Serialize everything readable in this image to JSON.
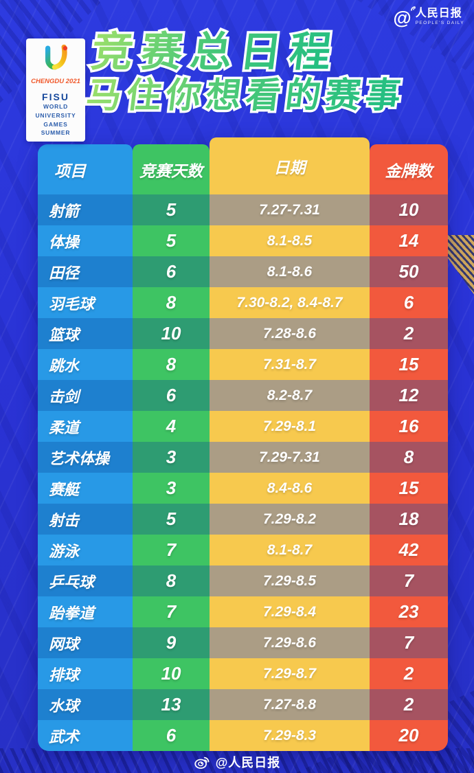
{
  "header": {
    "peoples_daily": {
      "name": "人民日报",
      "at": "@",
      "subtitle": "PEOPLE'S DAILY"
    },
    "logo_card": {
      "chengdu": "CHENGDU 2021",
      "fisu": "FISU",
      "lines": [
        "WORLD",
        "UNIVERSITY",
        "GAMES",
        "SUMMER"
      ]
    },
    "title_line1": "竞赛总日程",
    "title_line2": "马住你想看的赛事"
  },
  "footer": {
    "credit": "@人民日报"
  },
  "chart_data": {
    "type": "table",
    "title": "竞赛总日程",
    "subtitle": "马住你想看的赛事",
    "columns": [
      "项目",
      "竞赛天数",
      "日期",
      "金牌数"
    ],
    "rows": [
      [
        "射箭",
        "5",
        "7.27-7.31",
        "10"
      ],
      [
        "体操",
        "5",
        "8.1-8.5",
        "14"
      ],
      [
        "田径",
        "6",
        "8.1-8.6",
        "50"
      ],
      [
        "羽毛球",
        "8",
        "7.30-8.2, 8.4-8.7",
        "6"
      ],
      [
        "篮球",
        "10",
        "7.28-8.6",
        "2"
      ],
      [
        "跳水",
        "8",
        "7.31-8.7",
        "15"
      ],
      [
        "击剑",
        "6",
        "8.2-8.7",
        "12"
      ],
      [
        "柔道",
        "4",
        "7.29-8.1",
        "16"
      ],
      [
        "艺术体操",
        "3",
        "7.29-7.31",
        "8"
      ],
      [
        "赛艇",
        "3",
        "8.4-8.6",
        "15"
      ],
      [
        "射击",
        "5",
        "7.29-8.2",
        "18"
      ],
      [
        "游泳",
        "7",
        "8.1-8.7",
        "42"
      ],
      [
        "乒乓球",
        "8",
        "7.29-8.5",
        "7"
      ],
      [
        "跆拳道",
        "7",
        "7.29-8.4",
        "23"
      ],
      [
        "网球",
        "9",
        "7.29-8.6",
        "7"
      ],
      [
        "排球",
        "10",
        "7.29-8.7",
        "2"
      ],
      [
        "水球",
        "13",
        "7.27-8.8",
        "2"
      ],
      [
        "武术",
        "6",
        "7.29-8.3",
        "20"
      ]
    ],
    "layout": {
      "alternating_dark_rows": "odd rows (1st,3rd,...) darkened",
      "legend": "none",
      "grid": "off"
    }
  },
  "colors": {
    "background": "#2a33d6",
    "background_top": "#2d3be0",
    "col_event": "#2899e6",
    "col_days": "#3ec463",
    "col_date": "#f7c94e",
    "col_medals": "#f2593d",
    "col_event_dark": "#1e80cf",
    "col_days_dark": "#2e9c72",
    "col_date_dark": "#ab9d85",
    "col_medals_dark": "#a65361",
    "title_green_light": "#9fe06a",
    "title_green_deep": "#1ebd83",
    "logo_chengdu_orange": "#f0582a",
    "logo_fisu_blue": "#17499c"
  }
}
